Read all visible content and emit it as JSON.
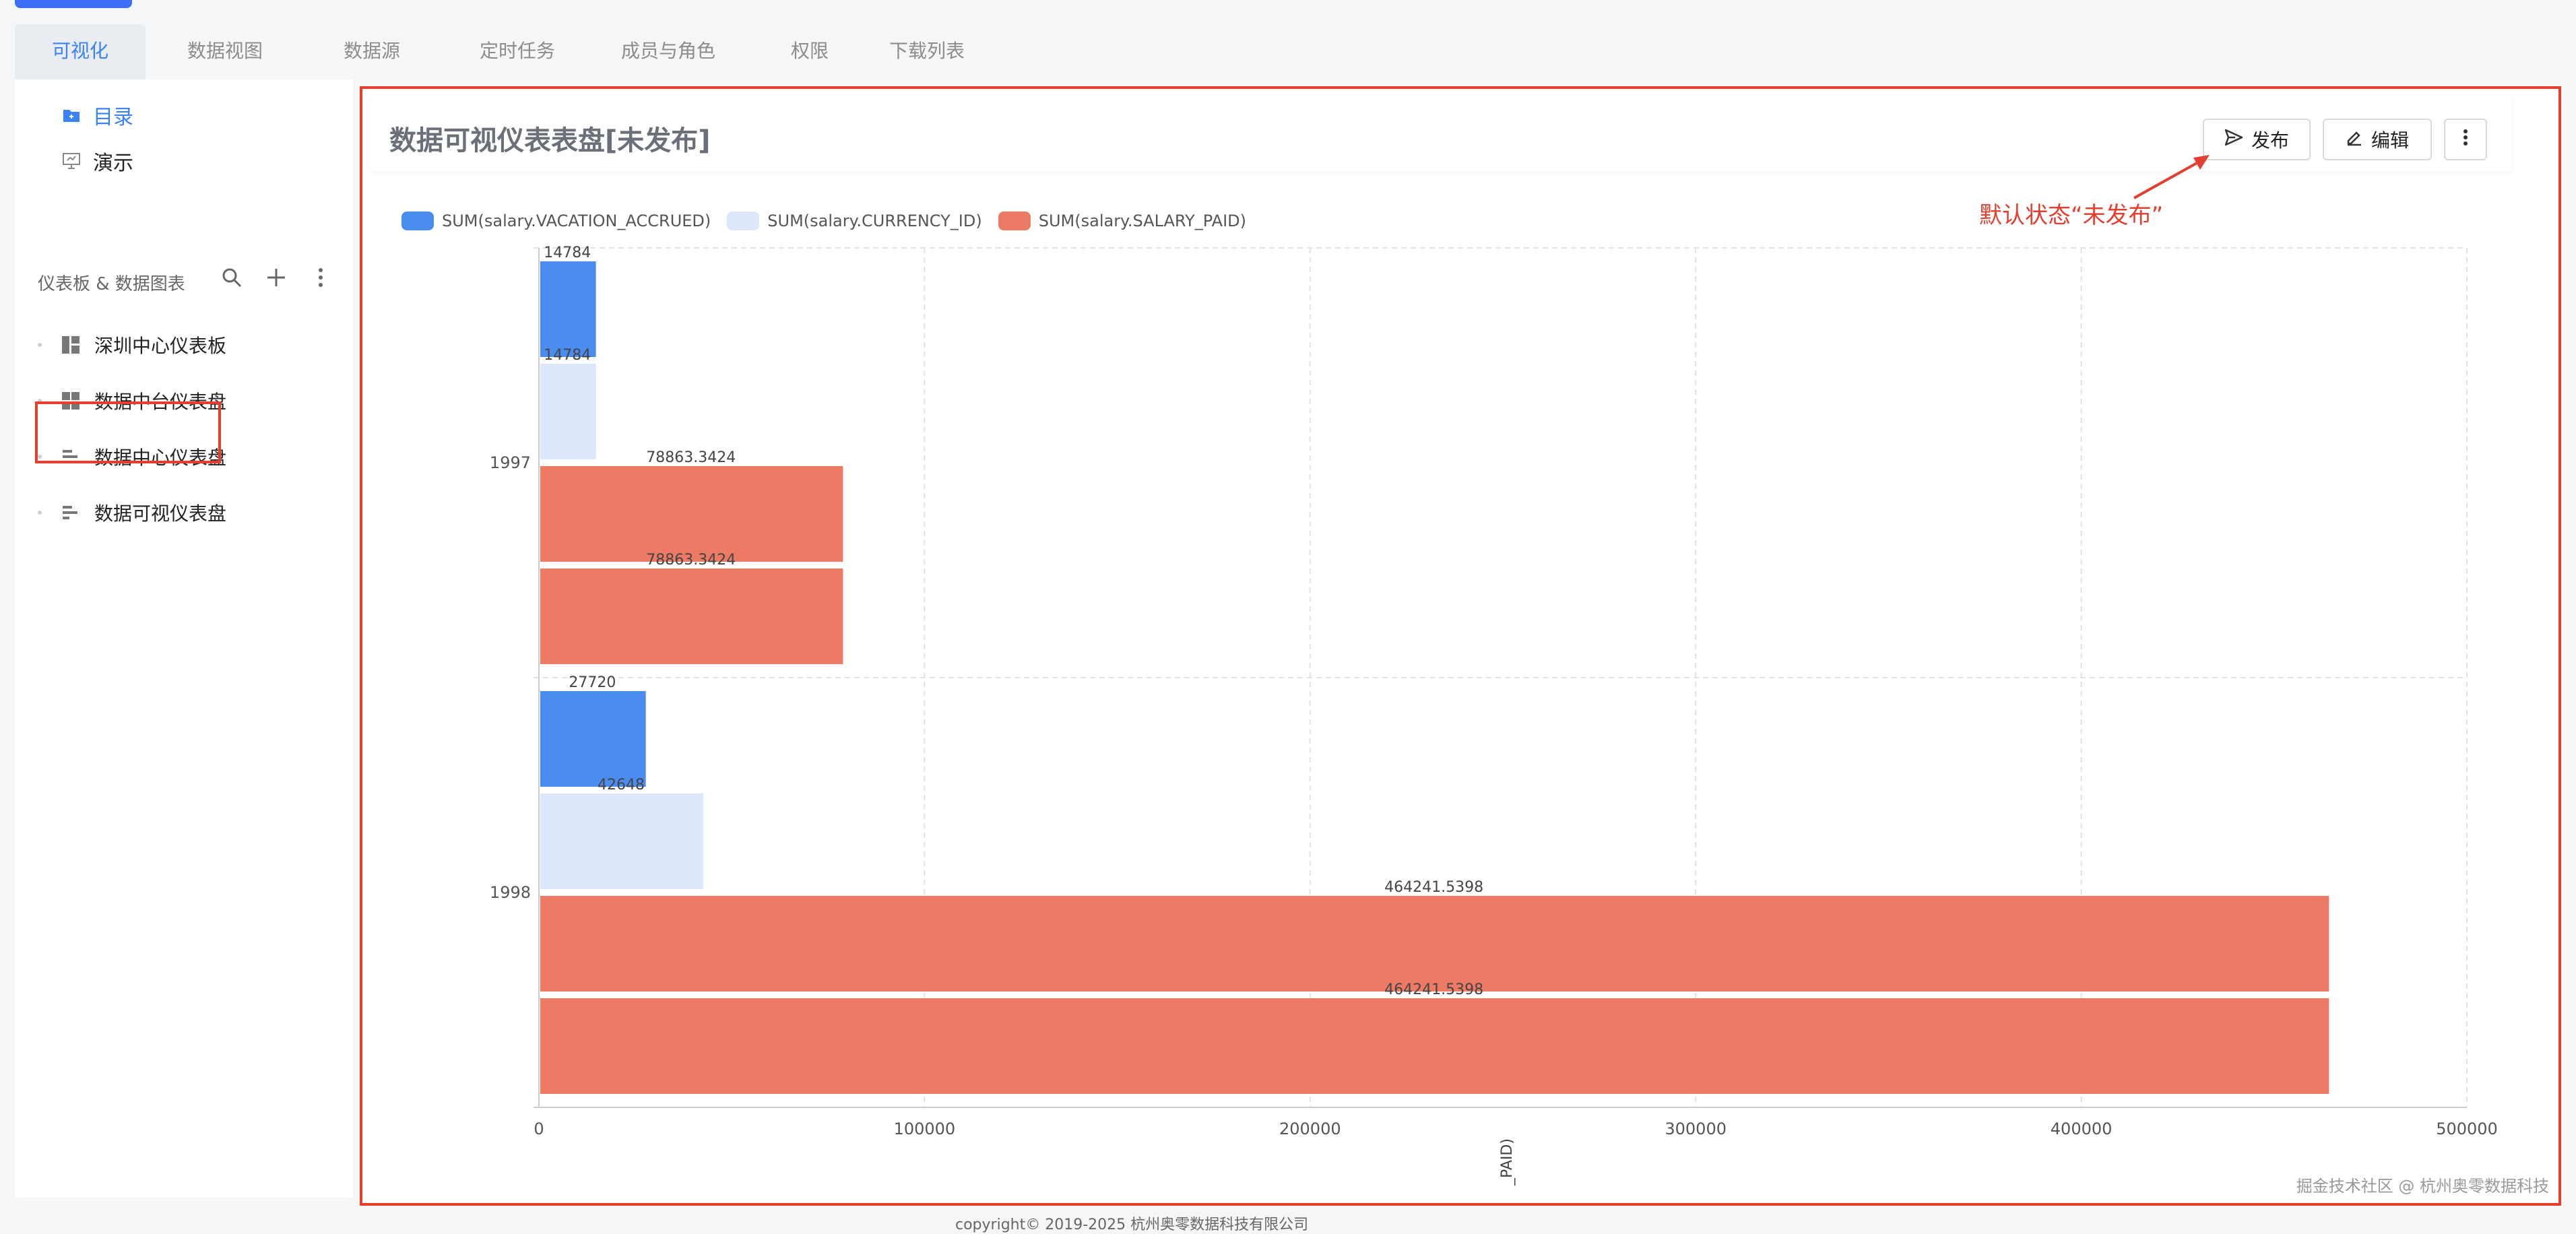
{
  "tabs": [
    "可视化",
    "数据视图",
    "数据源",
    "定时任务",
    "成员与角色",
    "权限",
    "下载列表"
  ],
  "sidebar": {
    "nav": [
      {
        "label": "目录",
        "icon": "folder-icon",
        "active": true
      },
      {
        "label": "演示",
        "icon": "presentation-icon",
        "active": false
      }
    ],
    "section_title": "仪表板 & 数据图表",
    "tree": [
      {
        "label": "深圳中心仪表板",
        "icon": "dashboard-icon"
      },
      {
        "label": "数据中台仪表盘",
        "icon": "grid-dashboard-icon"
      },
      {
        "label": "数据中心仪表盘",
        "icon": "bar-chart-icon"
      },
      {
        "label": "数据可视仪表盘",
        "icon": "bar-chart-icon"
      }
    ]
  },
  "main": {
    "title": "数据可视仪表表盘[未发布]",
    "buttons": {
      "publish": "发布",
      "edit": "编辑"
    },
    "annotation": "默认状态“未发布”"
  },
  "chart_data": {
    "type": "bar",
    "orientation": "horizontal",
    "categories": [
      "1997",
      "1998"
    ],
    "series": [
      {
        "name": "SUM(salary.VACATION_ACCRUED)",
        "color": "#4b8cf0",
        "values": [
          14784,
          27720
        ]
      },
      {
        "name": "SUM(salary.CURRENCY_ID)",
        "color": "#dde7fb",
        "values": [
          14784,
          42648
        ]
      },
      {
        "name": "SUM(salary.SALARY_PAID)",
        "color": "#ec7a64",
        "values": [
          78863.3424,
          464241.5398
        ]
      },
      {
        "name": "",
        "color": "#ec7a64",
        "values": [
          78863.3424,
          464241.5398
        ]
      }
    ],
    "data_labels": [
      [
        "14784",
        "27720"
      ],
      [
        "14784",
        "42648"
      ],
      [
        "78863.3424",
        "464241.5398"
      ],
      [
        "78863.3424",
        "464241.5398"
      ]
    ],
    "x_ticks": [
      "0",
      "100000",
      "200000",
      "300000",
      "400000",
      "500000"
    ],
    "xlim": [
      0,
      500000
    ],
    "xlabel": "_PAID)",
    "grid": true,
    "legend_position": "top-left"
  },
  "watermark": "掘金技术社区 @ 杭州奥零数据科技",
  "footer": "copyright© 2019-2025 杭州奥零数据科技有限公司"
}
